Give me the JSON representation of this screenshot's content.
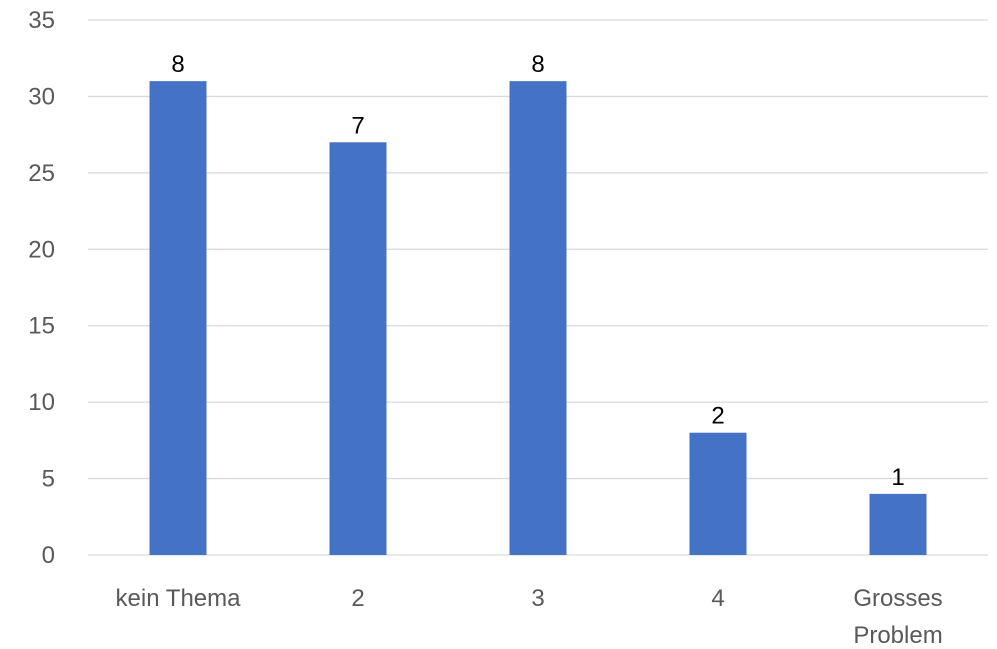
{
  "chart_data": {
    "type": "bar",
    "categories": [
      "kein Thema",
      "2",
      "3",
      "4",
      "Grosses Problem"
    ],
    "category_lines": [
      [
        "kein Thema"
      ],
      [
        "2"
      ],
      [
        "3"
      ],
      [
        "4"
      ],
      [
        "Grosses",
        "Problem"
      ]
    ],
    "values": [
      31,
      27,
      31,
      8,
      4
    ],
    "data_labels": [
      "8",
      "7",
      "8",
      "2",
      "1"
    ],
    "ylim": [
      0,
      35
    ],
    "yticks": [
      0,
      5,
      10,
      15,
      20,
      25,
      30,
      35
    ],
    "grid": true,
    "legend": false,
    "bar_color": "#4472c4",
    "title": "",
    "xlabel": "",
    "ylabel": ""
  }
}
